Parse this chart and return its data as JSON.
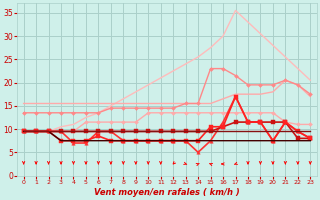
{
  "background_color": "#cff0ea",
  "grid_color": "#aacfca",
  "x_values": [
    0,
    1,
    2,
    3,
    4,
    5,
    6,
    7,
    8,
    9,
    10,
    11,
    12,
    13,
    14,
    15,
    16,
    17,
    18,
    19,
    20,
    21,
    22,
    23
  ],
  "x_labels": [
    "0",
    "1",
    "2",
    "3",
    "4",
    "5",
    "6",
    "7",
    "8",
    "9",
    "10",
    "11",
    "12",
    "13",
    "14",
    "15",
    "16",
    "17",
    "18",
    "19",
    "20",
    "21",
    "22",
    "23"
  ],
  "ylim": [
    0,
    37
  ],
  "yticks": [
    0,
    5,
    10,
    15,
    20,
    25,
    30,
    35
  ],
  "xlabel": "Vent moyen/en rafales ( km/h )",
  "lines": [
    {
      "y": [
        9.5,
        9.5,
        9.5,
        10.5,
        11.0,
        12.5,
        13.5,
        15.0,
        16.5,
        18.0,
        19.5,
        21.0,
        22.5,
        24.0,
        25.5,
        27.5,
        30.0,
        35.5,
        33.0,
        30.5,
        28.0,
        25.5,
        23.0,
        20.5
      ],
      "color": "#ffbbbb",
      "lw": 1.0,
      "marker": null,
      "ms": 0
    },
    {
      "y": [
        15.5,
        15.5,
        15.5,
        15.5,
        15.5,
        15.5,
        15.5,
        15.5,
        15.5,
        15.5,
        15.5,
        15.5,
        15.5,
        15.5,
        15.5,
        15.5,
        16.5,
        17.5,
        17.5,
        17.5,
        18.0,
        20.5,
        19.5,
        17.0
      ],
      "color": "#ffaaaa",
      "lw": 1.0,
      "marker": null,
      "ms": 0
    },
    {
      "y": [
        13.5,
        13.5,
        13.5,
        13.5,
        13.5,
        13.5,
        13.5,
        14.5,
        14.5,
        14.5,
        14.5,
        14.5,
        14.5,
        15.5,
        15.5,
        23.0,
        23.0,
        21.5,
        19.5,
        19.5,
        19.5,
        20.5,
        19.5,
        17.5
      ],
      "color": "#ff8888",
      "lw": 1.0,
      "marker": "D",
      "ms": 2.0
    },
    {
      "y": [
        9.5,
        9.5,
        9.5,
        9.5,
        9.5,
        11.5,
        11.5,
        11.5,
        11.5,
        11.5,
        13.5,
        13.5,
        13.5,
        13.5,
        13.5,
        13.5,
        13.5,
        13.5,
        13.5,
        13.5,
        13.5,
        11.5,
        11.0,
        11.0
      ],
      "color": "#ffaaaa",
      "lw": 1.0,
      "marker": "D",
      "ms": 2.0
    },
    {
      "y": [
        9.5,
        9.5,
        9.5,
        9.5,
        7.0,
        7.0,
        9.5,
        9.5,
        7.5,
        7.5,
        7.5,
        7.5,
        7.5,
        7.5,
        5.0,
        7.5,
        11.5,
        17.0,
        11.5,
        11.5,
        7.5,
        11.5,
        9.5,
        8.0
      ],
      "color": "#ff3333",
      "lw": 1.2,
      "marker": "^",
      "ms": 2.5
    },
    {
      "y": [
        9.5,
        9.5,
        9.5,
        9.5,
        9.5,
        9.5,
        9.5,
        9.5,
        9.5,
        9.5,
        9.5,
        9.5,
        9.5,
        9.5,
        9.5,
        9.5,
        10.5,
        11.5,
        11.5,
        11.5,
        11.5,
        11.5,
        8.0,
        8.0
      ],
      "color": "#cc1111",
      "lw": 1.2,
      "marker": "s",
      "ms": 2.5
    },
    {
      "y": [
        9.5,
        9.5,
        9.5,
        7.5,
        7.5,
        7.5,
        8.5,
        7.5,
        7.5,
        7.5,
        7.5,
        7.5,
        7.5,
        7.5,
        7.5,
        10.5,
        10.5,
        17.0,
        11.5,
        11.5,
        7.5,
        11.5,
        9.5,
        8.0
      ],
      "color": "#ff2222",
      "lw": 1.2,
      "marker": "s",
      "ms": 2.5
    },
    {
      "y": [
        9.5,
        9.5,
        9.5,
        7.5,
        7.5,
        7.5,
        7.5,
        7.5,
        7.5,
        7.5,
        7.5,
        7.5,
        7.5,
        7.5,
        7.5,
        7.5,
        7.5,
        7.5,
        7.5,
        7.5,
        7.5,
        7.5,
        7.5,
        7.5
      ],
      "color": "#440000",
      "lw": 1.0,
      "marker": null,
      "ms": 0
    },
    {
      "y": [
        9.5,
        9.5,
        9.5,
        9.5,
        9.5,
        9.5,
        9.5,
        9.5,
        9.5,
        9.5,
        9.5,
        9.5,
        9.5,
        9.5,
        9.5,
        9.5,
        9.5,
        9.5,
        9.5,
        9.5,
        9.5,
        9.5,
        9.5,
        9.5
      ],
      "color": "#881111",
      "lw": 1.0,
      "marker": null,
      "ms": 0
    }
  ],
  "wind_arrows": {
    "y_data": 2.5,
    "color": "#ff0000",
    "directions": [
      180,
      180,
      180,
      180,
      180,
      180,
      180,
      180,
      180,
      180,
      180,
      180,
      200,
      135,
      45,
      315,
      270,
      225,
      180,
      180,
      180,
      180,
      180,
      180
    ]
  },
  "tick_color": "#cc0000",
  "label_color": "#cc0000"
}
